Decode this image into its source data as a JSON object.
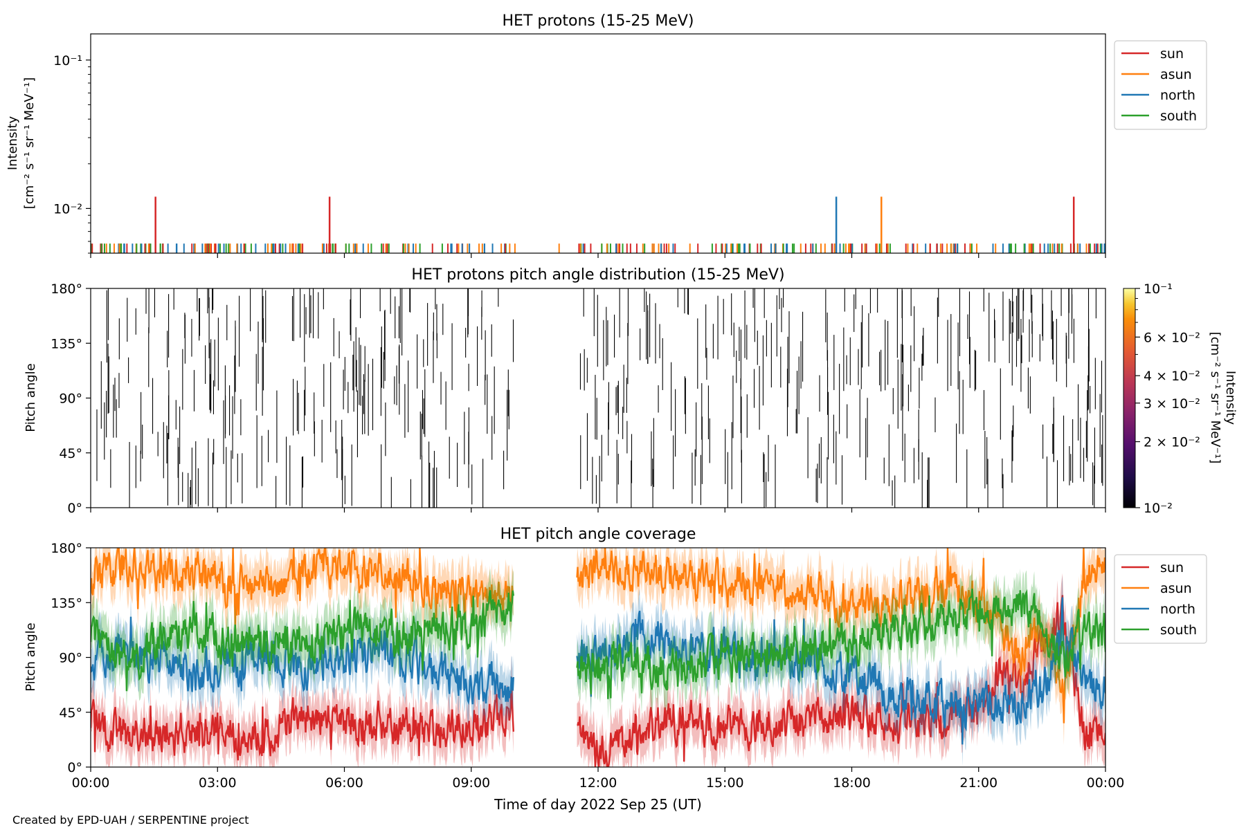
{
  "credit": "Created by EPD-UAH / SERPENTINE project",
  "colors": {
    "sun": "#d62728",
    "asun": "#ff7f0e",
    "north": "#1f77b4",
    "south": "#2ca02c"
  },
  "chart_data": [
    {
      "type": "line",
      "title": "HET protons (15-25 MeV)",
      "ylabel_line1": "Intensity",
      "ylabel_line2": "[cm⁻² s⁻¹ sr⁻¹ MeV⁻¹]",
      "yscale": "log",
      "ylim": [
        0.005,
        0.15
      ],
      "yticks": [
        {
          "value": 0.1,
          "label": "10⁻¹"
        },
        {
          "value": 0.01,
          "label": "10⁻²"
        }
      ],
      "xlim_hours": [
        0,
        24
      ],
      "legend": [
        "sun",
        "asun",
        "north",
        "south"
      ],
      "legend_position": "outside-top-right",
      "baseline_intensity": 0.0058,
      "series": [
        {
          "name": "sun",
          "spikes": [
            {
              "x": "01:32",
              "y": 0.012
            },
            {
              "x": "05:39",
              "y": 0.012
            },
            {
              "x": "23:15",
              "y": 0.012
            }
          ]
        },
        {
          "name": "asun",
          "spikes": [
            {
              "x": "18:42",
              "y": 0.012
            }
          ]
        },
        {
          "name": "north",
          "spikes": [
            {
              "x": "17:38",
              "y": 0.012
            }
          ]
        },
        {
          "name": "south",
          "spikes": []
        }
      ]
    },
    {
      "type": "heatmap",
      "title": "HET protons pitch angle distribution (15-25 MeV)",
      "ylabel": "Pitch angle",
      "ylim": [
        0,
        180
      ],
      "yticks": [
        "0°",
        "45°",
        "90°",
        "135°",
        "180°"
      ],
      "xlim_hours": [
        0,
        24
      ],
      "data_gap_hours": [
        10.0,
        11.5
      ],
      "colorbar": {
        "scale": "log",
        "range": [
          0.01,
          0.1
        ],
        "label_line1": "Intensity",
        "label_line2": "[cm⁻² s⁻¹ sr⁻¹ MeV⁻¹]",
        "ticks": [
          {
            "value": 0.1,
            "label": "10⁻¹"
          },
          {
            "value": 0.06,
            "label": "6 × 10⁻²"
          },
          {
            "value": 0.04,
            "label": "4 × 10⁻²"
          },
          {
            "value": 0.03,
            "label": "3 × 10⁻²"
          },
          {
            "value": 0.02,
            "label": "2 × 10⁻²"
          },
          {
            "value": 0.01,
            "label": "10⁻²"
          }
        ]
      }
    },
    {
      "type": "line",
      "title": "HET pitch angle coverage",
      "ylabel": "Pitch angle",
      "xlabel": "Time of day 2022 Sep 25 (UT)",
      "ylim": [
        0,
        180
      ],
      "yticks": [
        "0°",
        "45°",
        "90°",
        "135°",
        "180°"
      ],
      "xticks": [
        "00:00",
        "03:00",
        "06:00",
        "09:00",
        "12:00",
        "15:00",
        "18:00",
        "21:00",
        "00:00"
      ],
      "xlim_hours": [
        0,
        24
      ],
      "data_gap_hours": [
        10.0,
        11.5
      ],
      "legend": [
        "sun",
        "asun",
        "north",
        "south"
      ],
      "legend_position": "outside-top-right",
      "band_halfwidth_deg": 18,
      "series": [
        {
          "name": "sun",
          "points": [
            [
              0,
              38
            ],
            [
              1,
              24
            ],
            [
              2,
              28
            ],
            [
              3,
              30
            ],
            [
              4,
              22
            ],
            [
              5,
              42
            ],
            [
              6,
              38
            ],
            [
              7,
              34
            ],
            [
              8,
              30
            ],
            [
              9,
              36
            ],
            [
              10,
              44
            ],
            [
              11.5,
              28
            ],
            [
              12,
              18
            ],
            [
              13,
              28
            ],
            [
              14,
              40
            ],
            [
              15,
              34
            ],
            [
              16,
              38
            ],
            [
              17,
              36
            ],
            [
              18,
              44
            ],
            [
              19,
              38
            ],
            [
              20,
              34
            ],
            [
              21,
              44
            ],
            [
              21.7,
              88
            ],
            [
              22,
              60
            ],
            [
              22.5,
              110
            ],
            [
              23,
              122
            ],
            [
              23.5,
              26
            ],
            [
              24,
              22
            ]
          ]
        },
        {
          "name": "asun",
          "points": [
            [
              0,
              155
            ],
            [
              1,
              168
            ],
            [
              2,
              160
            ],
            [
              3,
              155
            ],
            [
              4,
              148
            ],
            [
              5,
              160
            ],
            [
              6,
              165
            ],
            [
              7,
              160
            ],
            [
              8,
              150
            ],
            [
              9,
              140
            ],
            [
              10,
              135
            ],
            [
              11.5,
              160
            ],
            [
              12,
              168
            ],
            [
              13,
              158
            ],
            [
              14,
              155
            ],
            [
              15,
              150
            ],
            [
              16,
              148
            ],
            [
              17,
              140
            ],
            [
              18,
              128
            ],
            [
              19,
              132
            ],
            [
              20,
              150
            ],
            [
              21,
              138
            ],
            [
              22,
              92
            ],
            [
              22.5,
              112
            ],
            [
              23,
              62
            ],
            [
              23.5,
              158
            ],
            [
              24,
              162
            ]
          ]
        },
        {
          "name": "north",
          "points": [
            [
              0,
              88
            ],
            [
              1,
              95
            ],
            [
              2,
              82
            ],
            [
              3,
              78
            ],
            [
              4,
              92
            ],
            [
              5,
              80
            ],
            [
              6,
              90
            ],
            [
              7,
              98
            ],
            [
              8,
              82
            ],
            [
              9,
              70
            ],
            [
              10,
              62
            ],
            [
              11.5,
              90
            ],
            [
              12,
              94
            ],
            [
              13,
              112
            ],
            [
              14,
              98
            ],
            [
              15,
              96
            ],
            [
              16,
              90
            ],
            [
              17,
              86
            ],
            [
              18,
              72
            ],
            [
              19,
              62
            ],
            [
              20,
              52
            ],
            [
              21,
              48
            ],
            [
              22,
              54
            ],
            [
              22.5,
              62
            ],
            [
              23,
              110
            ],
            [
              23.5,
              68
            ],
            [
              24,
              72
            ]
          ]
        },
        {
          "name": "south",
          "points": [
            [
              0,
              108
            ],
            [
              1,
              88
            ],
            [
              2,
              112
            ],
            [
              3,
              104
            ],
            [
              4,
              102
            ],
            [
              5,
              98
            ],
            [
              6,
              112
            ],
            [
              7,
              108
            ],
            [
              8,
              112
            ],
            [
              9,
              118
            ],
            [
              10,
              128
            ],
            [
              11.5,
              82
            ],
            [
              12,
              86
            ],
            [
              13,
              84
            ],
            [
              14,
              78
            ],
            [
              15,
              88
            ],
            [
              16,
              92
            ],
            [
              17,
              96
            ],
            [
              18,
              104
            ],
            [
              19,
              112
            ],
            [
              20,
              118
            ],
            [
              21,
              128
            ],
            [
              22,
              134
            ],
            [
              22.5,
              122
            ],
            [
              23,
              88
            ],
            [
              23.5,
              112
            ],
            [
              24,
              108
            ]
          ]
        }
      ]
    }
  ]
}
